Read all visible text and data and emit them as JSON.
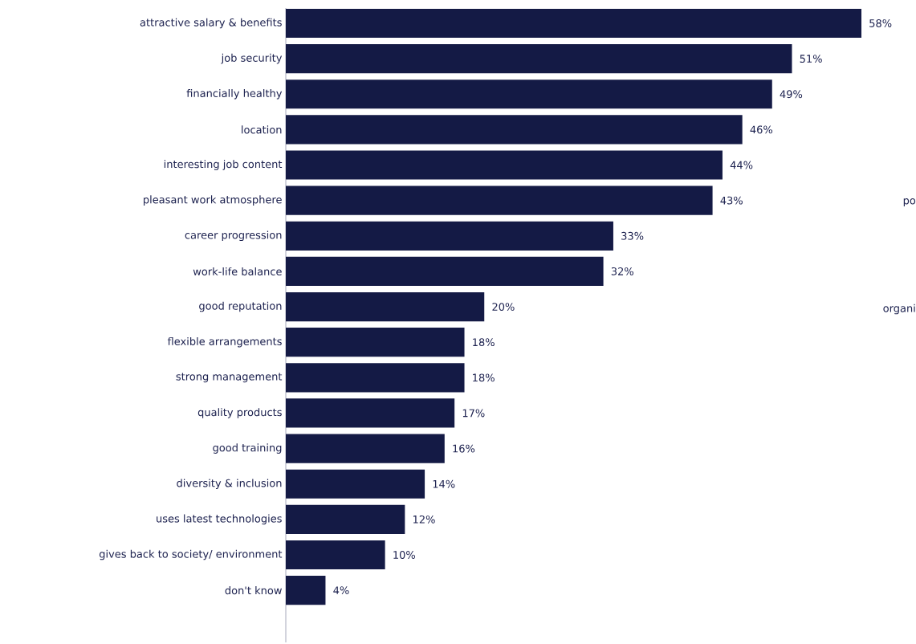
{
  "chart_data": {
    "type": "bar",
    "orientation": "horizontal",
    "categories": [
      "attractive salary & benefits",
      "job security",
      "financially healthy",
      "location",
      "interesting job content",
      "pleasant work atmosphere",
      "career progression",
      "work-life balance",
      "good reputation",
      "flexible arrangements",
      "strong management",
      "quality products",
      "good training",
      "diversity & inclusion",
      "uses latest technologies",
      "gives back to society/ environment",
      "don't know"
    ],
    "values": [
      58,
      51,
      49,
      46,
      44,
      43,
      33,
      32,
      20,
      18,
      18,
      17,
      16,
      14,
      12,
      10,
      4
    ],
    "value_labels": [
      "58%",
      "51%",
      "49%",
      "46%",
      "44%",
      "43%",
      "33%",
      "32%",
      "20%",
      "18%",
      "18%",
      "17%",
      "16%",
      "14%",
      "12%",
      "10%",
      "4%"
    ],
    "color": "#141a45",
    "annotations": [
      "po",
      "organi"
    ]
  }
}
